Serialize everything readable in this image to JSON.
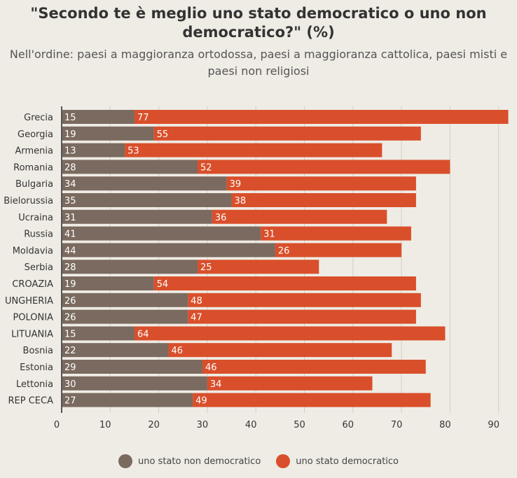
{
  "colors": {
    "non_democratic": "#7a6a5f",
    "democratic": "#d94f2b",
    "background": "#efece5",
    "grid": "#d2cec6",
    "axis": "#555555"
  },
  "chart_data": {
    "type": "bar",
    "orientation": "horizontal",
    "stacked": true,
    "title": "\"Secondo te è meglio uno stato democratico o uno non democratico?\" (%)",
    "subtitle": "Nell'ordine: paesi a maggioranza ortodossa, paesi a maggioranza cattolica, paesi misti e paesi non religiosi",
    "categories": [
      "Grecia",
      "Georgia",
      "Armenia",
      "Romania",
      "Bulgaria",
      "Bielorussia",
      "Ucraina",
      "Russia",
      "Moldavia",
      "Serbia",
      "CROAZIA",
      "UNGHERIA",
      "POLONIA",
      "LITUANIA",
      "Bosnia",
      "Estonia",
      "Lettonia",
      "REP CECA"
    ],
    "series": [
      {
        "name": "uno stato non democratico",
        "color": "#7a6a5f",
        "values": [
          15,
          19,
          13,
          28,
          34,
          35,
          31,
          41,
          44,
          28,
          19,
          26,
          26,
          15,
          22,
          29,
          30,
          27
        ]
      },
      {
        "name": "uno stato democratico",
        "color": "#d94f2b",
        "values": [
          77,
          55,
          53,
          52,
          39,
          38,
          36,
          31,
          26,
          25,
          54,
          48,
          47,
          64,
          46,
          46,
          34,
          49
        ]
      }
    ],
    "xlim": [
      0,
      90
    ],
    "xticks": [
      0,
      10,
      20,
      30,
      40,
      50,
      60,
      70,
      80,
      90
    ],
    "grid": true,
    "legend_position": "bottom"
  }
}
